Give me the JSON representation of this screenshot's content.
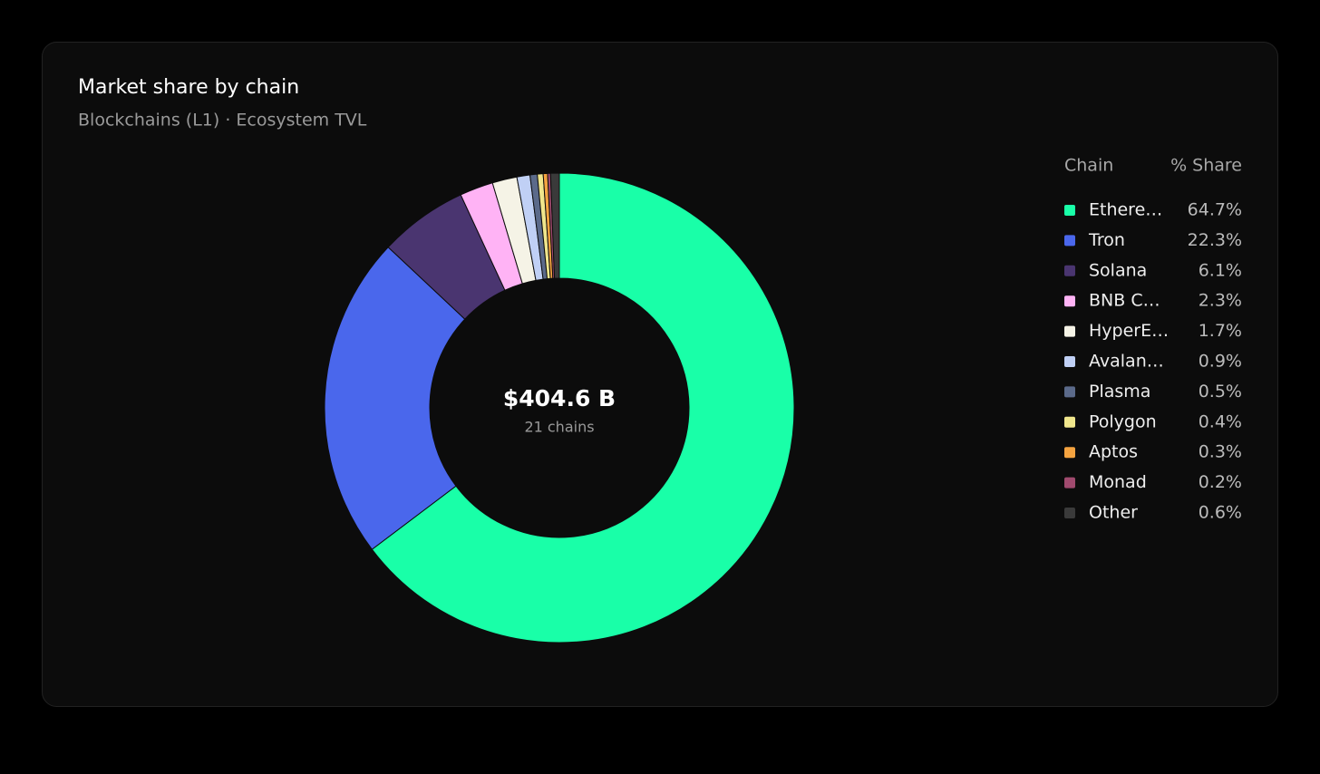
{
  "chart_data": {
    "type": "donut",
    "title": "Market share by chain",
    "subtitle": "Blockchains (L1) · Ecosystem TVL",
    "center_label": "$404.6 B",
    "center_sublabel": "21 chains",
    "legend_header_name": "Chain",
    "legend_header_value": "% Share",
    "legend_position": "right",
    "categories": [
      "Ethere…",
      "Tron",
      "Solana",
      "BNB C…",
      "HyperE…",
      "Avalan…",
      "Plasma",
      "Polygon",
      "Aptos",
      "Monad",
      "Other"
    ],
    "values": [
      64.7,
      22.3,
      6.1,
      2.3,
      1.7,
      0.9,
      0.5,
      0.4,
      0.3,
      0.2,
      0.6
    ],
    "value_labels": [
      "64.7%",
      "22.3%",
      "6.1%",
      "2.3%",
      "1.7%",
      "0.9%",
      "0.5%",
      "0.4%",
      "0.3%",
      "0.2%",
      "0.6%"
    ],
    "colors": [
      "#19ffa8",
      "#4a67ec",
      "#4a3570",
      "#ffb3f5",
      "#f5f3e6",
      "#c0d0f5",
      "#5b6a8a",
      "#f0e68c",
      "#f4a340",
      "#a04a6e",
      "#3a3a3a"
    ]
  }
}
